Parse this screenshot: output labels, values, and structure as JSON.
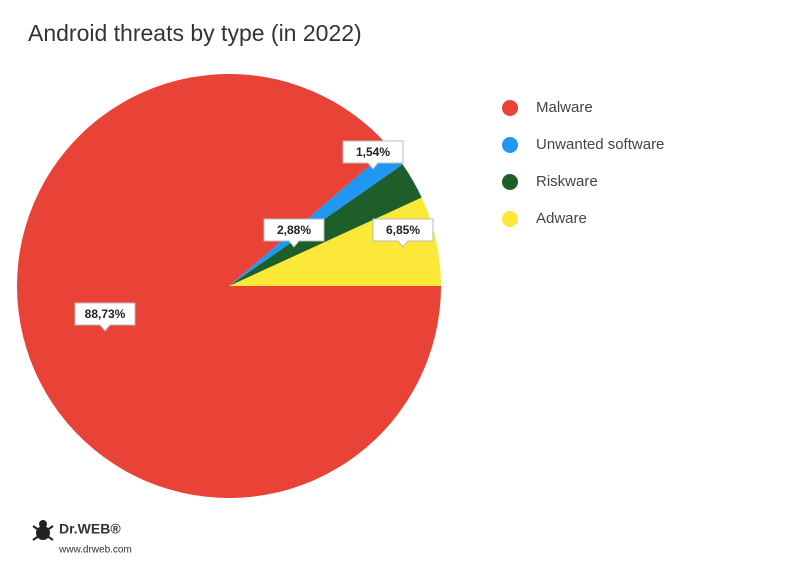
{
  "chart_data": {
    "type": "pie",
    "title": "Android threats by type (in 2022)",
    "categories": [
      "Malware",
      "Unwanted software",
      "Riskware",
      "Adware"
    ],
    "values": [
      88.73,
      1.54,
      2.88,
      6.85
    ],
    "value_labels": [
      "88,73%",
      "1,54%",
      "2,88%",
      "6,85%"
    ],
    "colors": [
      "#e94236",
      "#2196f3",
      "#1e5e2a",
      "#fbe839"
    ],
    "legend": "right"
  },
  "brand": {
    "logo": "Dr.WEB®",
    "url": "www.drweb.com"
  }
}
